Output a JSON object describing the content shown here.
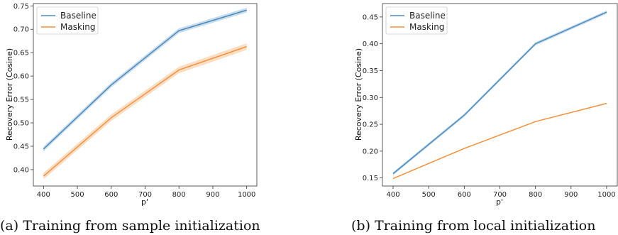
{
  "chart_data": [
    {
      "type": "line",
      "caption": "(a) Training from sample initialization",
      "xlabel": "p'",
      "ylabel": "Recovery Error (Cosine)",
      "x": [
        400,
        600,
        800,
        1000
      ],
      "xlim": [
        370,
        1030
      ],
      "ylim": [
        0.365,
        0.755
      ],
      "xticks": [
        400,
        500,
        600,
        700,
        800,
        900,
        1000
      ],
      "yticks": [
        "0.40",
        "0.45",
        "0.50",
        "0.55",
        "0.60",
        "0.65",
        "0.70",
        "0.75"
      ],
      "legend": "top-left",
      "series": [
        {
          "name": "Baseline",
          "color": "#4a8bbd",
          "values": [
            0.444,
            0.581,
            0.697,
            0.741
          ],
          "band": 0.005
        },
        {
          "name": "Masking",
          "color": "#f5923e",
          "values": [
            0.386,
            0.511,
            0.613,
            0.663
          ],
          "band": 0.007
        }
      ]
    },
    {
      "type": "line",
      "caption": "(b) Training from local initialization",
      "xlabel": "p'",
      "ylabel": "Recovery Error (Cosine)",
      "x": [
        400,
        600,
        800,
        1000
      ],
      "xlim": [
        370,
        1030
      ],
      "ylim": [
        0.135,
        0.475
      ],
      "xticks": [
        400,
        500,
        600,
        700,
        800,
        900,
        1000
      ],
      "yticks": [
        "0.15",
        "0.20",
        "0.25",
        "0.30",
        "0.35",
        "0.40",
        "0.45"
      ],
      "legend": "top-left",
      "series": [
        {
          "name": "Baseline",
          "color": "#4a8bbd",
          "values": [
            0.158,
            0.267,
            0.4,
            0.459
          ],
          "band": 0.003
        },
        {
          "name": "Masking",
          "color": "#f5923e",
          "values": [
            0.149,
            0.205,
            0.255,
            0.289
          ],
          "band": 0.001
        }
      ]
    }
  ]
}
